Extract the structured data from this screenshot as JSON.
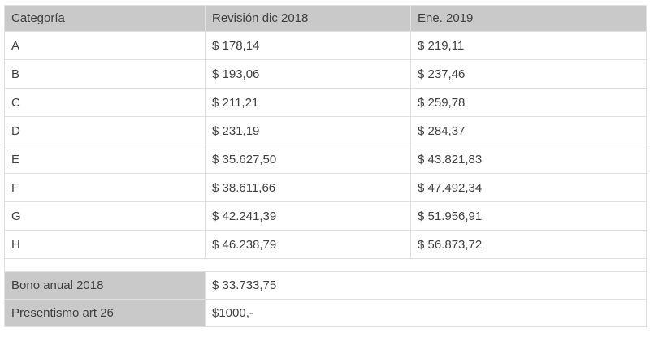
{
  "chart_data": {
    "type": "table",
    "title": "",
    "columns": [
      "Categoría",
      "Revisión dic 2018",
      "Ene. 2019"
    ],
    "rows": [
      [
        "A",
        "$ 178,14",
        "$ 219,11"
      ],
      [
        "B",
        "$ 193,06",
        "$ 237,46"
      ],
      [
        "C",
        "$ 211,21",
        "$ 259,78"
      ],
      [
        "D",
        "$ 231,19",
        "$ 284,37"
      ],
      [
        "E",
        "$ 35.627,50",
        "$ 43.821,83"
      ],
      [
        "F",
        "$ 38.611,66",
        "$ 47.492,34"
      ],
      [
        "G",
        "$ 42.241,39",
        "$ 51.956,91"
      ],
      [
        "H",
        "$ 46.238,79",
        "$ 56.873,72"
      ]
    ],
    "footer_rows": [
      [
        "Bono anual 2018",
        "$ 33.733,75"
      ],
      [
        "Presentismo art 26",
        "$1000,-"
      ]
    ],
    "layout": {
      "grid": "all-cell-borders",
      "header_filled": true,
      "spacer_row_between_rows_and_footer": true
    }
  },
  "colors": {
    "header_bg": "#c9c9c9",
    "border": "#e0e0e0",
    "text": "#404040",
    "row_bg": "#ffffff"
  }
}
